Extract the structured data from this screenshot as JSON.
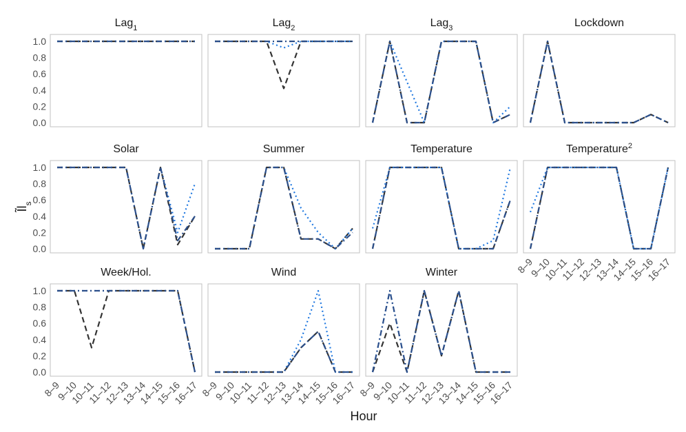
{
  "chart_data": {
    "type": "line",
    "xlabel": "Hour",
    "ylabel": "Ĩl",
    "ylabel_sub": "s",
    "ylim": [
      0,
      1
    ],
    "yticks": [
      "0.0",
      "0.2",
      "0.4",
      "0.6",
      "0.8",
      "1.0"
    ],
    "categories": [
      "8–9",
      "9–10",
      "10–11",
      "11–12",
      "12–13",
      "13–14",
      "14–15",
      "15–16",
      "16–17"
    ],
    "series_styles": [
      {
        "color": "#333333",
        "dash": "8,5"
      },
      {
        "color": "#1f78e0",
        "dash": "2,4"
      },
      {
        "color": "#2c4f8a",
        "dash": "8,4,2,4"
      }
    ],
    "panels": [
      {
        "title": "Lag",
        "title_sub": "1",
        "series": [
          [
            1,
            1,
            1,
            1,
            1,
            1,
            1,
            1,
            1
          ],
          [
            1,
            1,
            1,
            1,
            1,
            1,
            1,
            1,
            1
          ],
          [
            1,
            1,
            1,
            1,
            1,
            1,
            1,
            1,
            1
          ]
        ]
      },
      {
        "title": "Lag",
        "title_sub": "2",
        "series": [
          [
            1,
            1,
            1,
            1,
            0.42,
            1,
            1,
            1,
            1
          ],
          [
            1,
            1,
            1,
            1,
            0.92,
            1,
            1,
            1,
            1
          ],
          [
            1,
            1,
            1,
            1,
            1,
            1,
            1,
            1,
            1
          ]
        ]
      },
      {
        "title": "Lag",
        "title_sub": "3",
        "series": [
          [
            0,
            1,
            0,
            0,
            1,
            1,
            1,
            0,
            0.1
          ],
          [
            0,
            1,
            0.5,
            0,
            1,
            1,
            1,
            0,
            0.2
          ],
          [
            0,
            1,
            0,
            0,
            1,
            1,
            1,
            0,
            0.1
          ]
        ]
      },
      {
        "title": "Lockdown",
        "title_sub": "",
        "series": [
          [
            0,
            1,
            0,
            0,
            0,
            0,
            0,
            0.1,
            0
          ],
          [
            0,
            1,
            0,
            0,
            0,
            0,
            0,
            0.1,
            0
          ],
          [
            0,
            1,
            0,
            0,
            0,
            0,
            0,
            0.1,
            0
          ]
        ]
      },
      {
        "title": "Solar",
        "title_sub": "",
        "series": [
          [
            1,
            1,
            1,
            1,
            1,
            0,
            1,
            0.05,
            0.4
          ],
          [
            1,
            1,
            1,
            1,
            1,
            0,
            1,
            0.2,
            0.8
          ],
          [
            1,
            1,
            1,
            1,
            1,
            0,
            1,
            0.1,
            0.4
          ]
        ]
      },
      {
        "title": "Summer",
        "title_sub": "",
        "series": [
          [
            0,
            0,
            0,
            1,
            1,
            0.12,
            0.12,
            0,
            0.25
          ],
          [
            0,
            0,
            0,
            1,
            1,
            0.5,
            0.2,
            0,
            0.25
          ],
          [
            0,
            0,
            0,
            1,
            1,
            0.12,
            0.12,
            0,
            0.2
          ]
        ]
      },
      {
        "title": "Temperature",
        "title_sub": "",
        "series": [
          [
            0,
            1,
            1,
            1,
            1,
            0,
            0,
            0,
            0.6
          ],
          [
            0.25,
            1,
            1,
            1,
            1,
            0,
            0,
            0.1,
            1
          ],
          [
            0,
            1,
            1,
            1,
            1,
            0,
            0,
            0,
            0.6
          ]
        ]
      },
      {
        "title": "Temperature",
        "title_sup": "2",
        "series": [
          [
            0,
            1,
            1,
            1,
            1,
            1,
            0,
            0,
            1
          ],
          [
            0.45,
            1,
            1,
            1,
            1,
            1,
            0,
            0,
            1
          ],
          [
            0,
            1,
            1,
            1,
            1,
            1,
            0,
            0,
            1
          ]
        ]
      },
      {
        "title": "Week/Hol.",
        "title_sub": "",
        "series": [
          [
            1,
            1,
            0.3,
            1,
            1,
            1,
            1,
            1,
            0
          ],
          [
            1,
            1,
            1,
            1,
            1,
            1,
            1,
            1,
            0
          ],
          [
            1,
            1,
            1,
            1,
            1,
            1,
            1,
            1,
            0
          ]
        ]
      },
      {
        "title": "Wind",
        "title_sub": "",
        "series": [
          [
            0,
            0,
            0,
            0,
            0,
            0.3,
            0.5,
            0,
            0
          ],
          [
            0,
            0,
            0,
            0,
            0,
            0.4,
            1,
            0,
            0
          ],
          [
            0,
            0,
            0,
            0,
            0,
            0.3,
            0.5,
            0,
            0
          ]
        ]
      },
      {
        "title": "Winter",
        "title_sub": "",
        "series": [
          [
            0,
            0.6,
            0,
            1,
            0.2,
            1,
            0,
            0,
            0
          ],
          [
            0,
            1,
            0,
            1,
            0.2,
            1,
            0,
            0,
            0
          ],
          [
            0,
            1,
            0,
            1,
            0.2,
            1,
            0,
            0,
            0
          ]
        ]
      }
    ]
  }
}
